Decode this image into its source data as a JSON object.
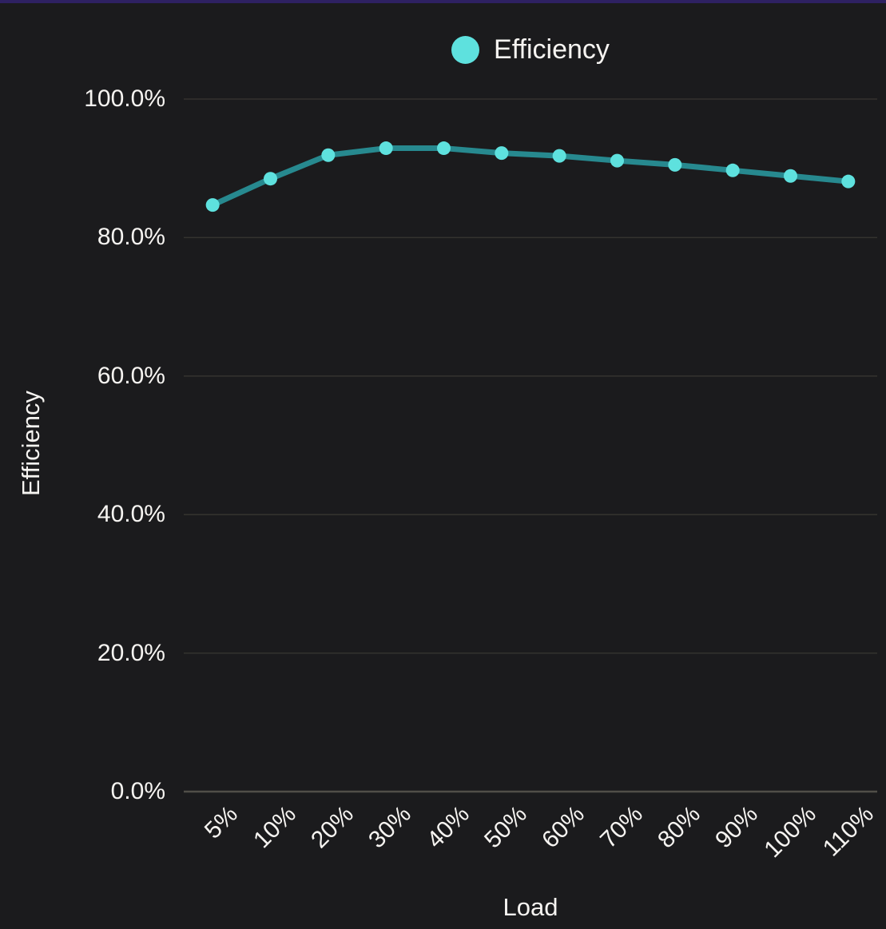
{
  "accent_bar_color": "#2e2162",
  "background_color": "#1b1b1d",
  "legend": {
    "items": [
      {
        "label": "Efficiency",
        "marker": "circle-icon",
        "color": "#5ee1de"
      }
    ]
  },
  "chart_data": {
    "type": "line",
    "title": "",
    "xlabel": "Load",
    "ylabel": "Efficiency",
    "categories": [
      "5%",
      "10%",
      "20%",
      "30%",
      "40%",
      "50%",
      "60%",
      "70%",
      "80%",
      "90%",
      "100%",
      "110%"
    ],
    "series": [
      {
        "name": "Efficiency",
        "values": [
          84.7,
          88.5,
          91.9,
          92.9,
          92.9,
          92.2,
          91.8,
          91.1,
          90.5,
          89.7,
          88.9,
          88.1
        ],
        "line_color": "#27898f",
        "marker_color": "#5ee1de"
      }
    ],
    "ylim": [
      0,
      100
    ],
    "yticks": [
      0,
      20,
      40,
      60,
      80,
      100
    ],
    "ytick_labels": [
      "0.0%",
      "20.0%",
      "40.0%",
      "60.0%",
      "80.0%",
      "100.0%"
    ],
    "grid": "horizontal",
    "grid_color": "#34332f",
    "axis_line_color": "#504e48",
    "text_color": "#f6f4f1",
    "legend_position": "top"
  }
}
